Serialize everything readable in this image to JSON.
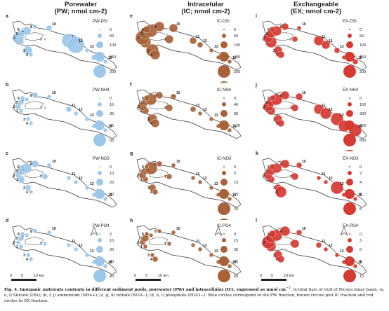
{
  "columns": [
    {
      "title_line1": "Porewater",
      "title_line2": "(PW; nmol cm-2)"
    },
    {
      "title_line1": "Intracelular",
      "title_line2": "(IC; nmol cm-2)"
    },
    {
      "title_line1": "Exchangeable",
      "title_line2": "(EX; nmol cm-2)"
    }
  ],
  "colors": {
    "pw": "#9cc7e8",
    "ic": "#a8623a",
    "ex": "#d43a32",
    "coast": "#333333"
  },
  "site_labels": [
    "1",
    "2",
    "3",
    "4",
    "5",
    "6",
    "7",
    "8",
    "9",
    "10",
    "11",
    "12",
    "13",
    "14",
    "15"
  ],
  "panels": [
    {
      "letter": "a",
      "legend_title": "PW-DSi",
      "legend_values": [
        "0",
        "50",
        "100",
        "150",
        "200"
      ],
      "col": 0,
      "row": 0
    },
    {
      "letter": "e",
      "legend_title": "IC-DSi",
      "legend_values": [
        "0",
        "50",
        "100",
        "150",
        "200",
        "250"
      ],
      "col": 1,
      "row": 0
    },
    {
      "letter": "i",
      "legend_title": "EX-DSi",
      "legend_values": [
        "0",
        "50",
        "100",
        "150",
        "200"
      ],
      "col": 2,
      "row": 0
    },
    {
      "letter": "b",
      "legend_title": "PW-NH4",
      "legend_values": [
        "0",
        "15",
        "30",
        "45",
        "60"
      ],
      "col": 0,
      "row": 1
    },
    {
      "letter": "f",
      "legend_title": "IC-NH4",
      "legend_values": [
        "0",
        "40",
        "80",
        "120"
      ],
      "col": 1,
      "row": 1
    },
    {
      "letter": "j",
      "legend_title": "EX-NH4",
      "legend_values": [
        "0",
        "150",
        "300",
        "450",
        "600",
        "750"
      ],
      "col": 2,
      "row": 1
    },
    {
      "letter": "c",
      "legend_title": "PW-NO3",
      "legend_values": [
        "0",
        "10",
        "20",
        "30"
      ],
      "col": 0,
      "row": 2
    },
    {
      "letter": "g",
      "legend_title": "IC-NO3",
      "legend_values": [
        "0",
        "5",
        "10",
        "15",
        "20",
        "25"
      ],
      "col": 1,
      "row": 2
    },
    {
      "letter": "k",
      "legend_title": "EX-NO3",
      "legend_values": [
        "0",
        "2",
        "4",
        "6",
        "8"
      ],
      "col": 2,
      "row": 2
    },
    {
      "letter": "d",
      "legend_title": "PW-PO4",
      "legend_values": [
        "0",
        "10",
        "20",
        "30",
        "40"
      ],
      "col": 0,
      "row": 3
    },
    {
      "letter": "h",
      "legend_title": "IC-PO4",
      "legend_values": [
        "0",
        "15",
        "30",
        "45",
        "60"
      ],
      "col": 1,
      "row": 3
    },
    {
      "letter": "l",
      "legend_title": "EX-PO4",
      "legend_values": [
        "0",
        "3",
        "6",
        "9",
        "12"
      ],
      "col": 2,
      "row": 3
    }
  ],
  "scalebar": {
    "ticks": [
      "0",
      "5",
      "10 km"
    ]
  },
  "caption": {
    "head": "Fig. 4.",
    "title": "Inorganic nutrients contents in different sediment pools, porewater (PW) and intracellular (IC), expressed as nmol cm",
    "superscript": "−2",
    "body": ", in tidal flats of Gulf of Nicoya inner basin. (a, e, i) Silicate (DSi); (b, f, j) ammonium (NH4+); (c, g, k) nitrate (NO3−); (d, h, l) phosphate (PO43−). Blue circles correspond to the PW fraction, brown circles plot IC fraction and red circles to EX fraction."
  }
}
